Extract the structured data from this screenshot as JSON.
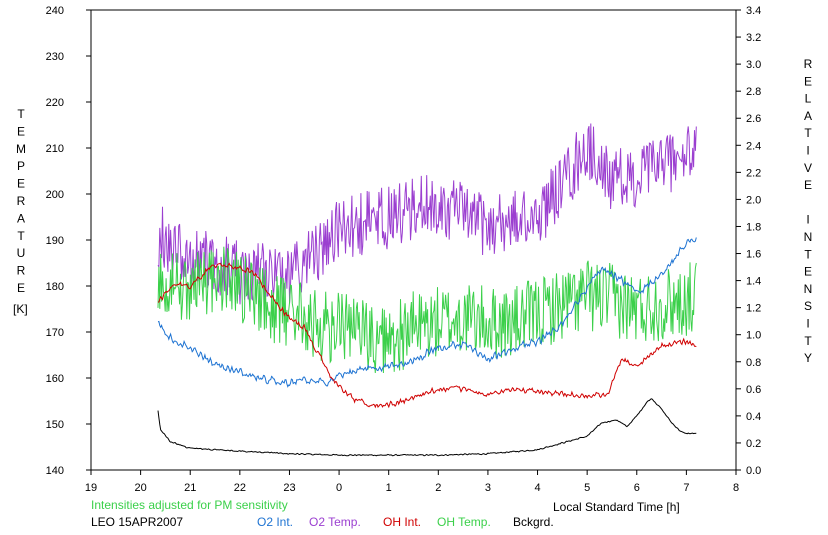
{
  "chart_data": {
    "type": "line",
    "title": "",
    "xlabel": "Local Standard Time [h]",
    "y_left_label": "TEMPERATURE",
    "y_left_unit": "[K]",
    "y_right_label": "RELATIVE INTENSITY",
    "x_range": [
      19,
      32
    ],
    "x_tick_labels": [
      "19",
      "20",
      "21",
      "22",
      "23",
      "0",
      "1",
      "2",
      "3",
      "4",
      "5",
      "6",
      "7",
      "8"
    ],
    "y_left_range": [
      140,
      240
    ],
    "y_left_ticks": [
      "140",
      "150",
      "160",
      "170",
      "180",
      "190",
      "200",
      "210",
      "220",
      "230",
      "240"
    ],
    "y_right_range": [
      0.0,
      3.4
    ],
    "y_right_ticks": [
      "0.0",
      "0.2",
      "0.4",
      "0.6",
      "0.8",
      "1.0",
      "1.2",
      "1.4",
      "1.6",
      "1.8",
      "2.0",
      "2.2",
      "2.4",
      "2.6",
      "2.8",
      "3.0",
      "3.2",
      "3.4"
    ],
    "note": "Intensities adjusted for PM sensitivity",
    "station_date": "LEO 15APR2007",
    "grid": false,
    "series": [
      {
        "name": "O2 Int.",
        "axis": "right",
        "color": "#1e73d2",
        "noise": 0.035,
        "seed": 3,
        "x": [
          20.35,
          20.6,
          21.0,
          21.5,
          22.0,
          22.5,
          23.0,
          23.3,
          23.6,
          23.8,
          24.0,
          24.5,
          25.0,
          25.5,
          26.0,
          26.5,
          27.0,
          27.5,
          28.0,
          28.5,
          29.0,
          29.3,
          29.7,
          30.0,
          30.5,
          31.0,
          31.2
        ],
        "y": [
          1.08,
          0.98,
          0.9,
          0.78,
          0.72,
          0.67,
          0.64,
          0.66,
          0.66,
          0.64,
          0.7,
          0.74,
          0.77,
          0.8,
          0.91,
          0.93,
          0.82,
          0.9,
          0.95,
          1.08,
          1.35,
          1.5,
          1.4,
          1.3,
          1.45,
          1.67,
          1.72
        ]
      },
      {
        "name": "O2 Temp.",
        "axis": "left",
        "color": "#9b3fd0",
        "noise": 7,
        "seed": 7,
        "x": [
          20.35,
          21.0,
          22.0,
          23.0,
          24.0,
          25.0,
          26.0,
          27.0,
          28.0,
          28.5,
          29.0,
          29.5,
          30.0,
          30.5,
          31.0,
          31.2
        ],
        "y": [
          191,
          186,
          183,
          182,
          192,
          195,
          198,
          193,
          195,
          202,
          210,
          203,
          203,
          207,
          208,
          209
        ]
      },
      {
        "name": "OH Int.",
        "axis": "right",
        "color": "#d00000",
        "noise": 0.025,
        "seed": 11,
        "x": [
          20.35,
          20.7,
          21.0,
          21.4,
          21.8,
          22.3,
          22.6,
          23.0,
          23.3,
          23.6,
          23.85,
          24.0,
          24.3,
          24.8,
          25.2,
          25.6,
          26.0,
          26.5,
          27.0,
          27.5,
          28.0,
          28.5,
          29.0,
          29.4,
          29.7,
          30.0,
          30.5,
          31.0,
          31.2
        ],
        "y": [
          1.25,
          1.38,
          1.35,
          1.5,
          1.52,
          1.45,
          1.3,
          1.12,
          1.05,
          0.85,
          0.68,
          0.62,
          0.52,
          0.47,
          0.5,
          0.55,
          0.6,
          0.6,
          0.55,
          0.6,
          0.58,
          0.56,
          0.55,
          0.55,
          0.82,
          0.76,
          0.92,
          0.95,
          0.92
        ]
      },
      {
        "name": "OH Temp.",
        "axis": "left",
        "color": "#3bd04a",
        "noise": 8,
        "seed": 19,
        "x": [
          20.35,
          20.8,
          21.5,
          22.0,
          22.5,
          23.0,
          23.5,
          24.0,
          24.5,
          25.0,
          25.5,
          26.0,
          26.5,
          27.0,
          27.5,
          28.0,
          28.5,
          29.0,
          29.5,
          30.0,
          30.5,
          31.0,
          31.2
        ],
        "y": [
          179,
          180,
          181,
          180,
          176,
          174,
          172,
          171,
          170,
          168,
          171,
          172,
          173,
          172,
          172,
          174,
          176,
          178,
          177,
          175,
          176,
          177,
          178
        ]
      },
      {
        "name": "Bckgrd.",
        "axis": "right",
        "color": "#000000",
        "noise": 0.006,
        "seed": 23,
        "x": [
          20.35,
          20.4,
          20.6,
          21.0,
          21.5,
          22.0,
          22.5,
          23.0,
          24.0,
          25.0,
          26.0,
          27.0,
          28.0,
          28.5,
          29.0,
          29.3,
          29.6,
          29.8,
          30.0,
          30.2,
          30.3,
          30.5,
          30.7,
          30.9,
          31.0,
          31.2
        ],
        "y": [
          0.44,
          0.3,
          0.21,
          0.16,
          0.15,
          0.14,
          0.13,
          0.12,
          0.11,
          0.11,
          0.11,
          0.12,
          0.15,
          0.2,
          0.25,
          0.35,
          0.37,
          0.32,
          0.4,
          0.5,
          0.53,
          0.45,
          0.35,
          0.28,
          0.27,
          0.27
        ]
      }
    ]
  }
}
